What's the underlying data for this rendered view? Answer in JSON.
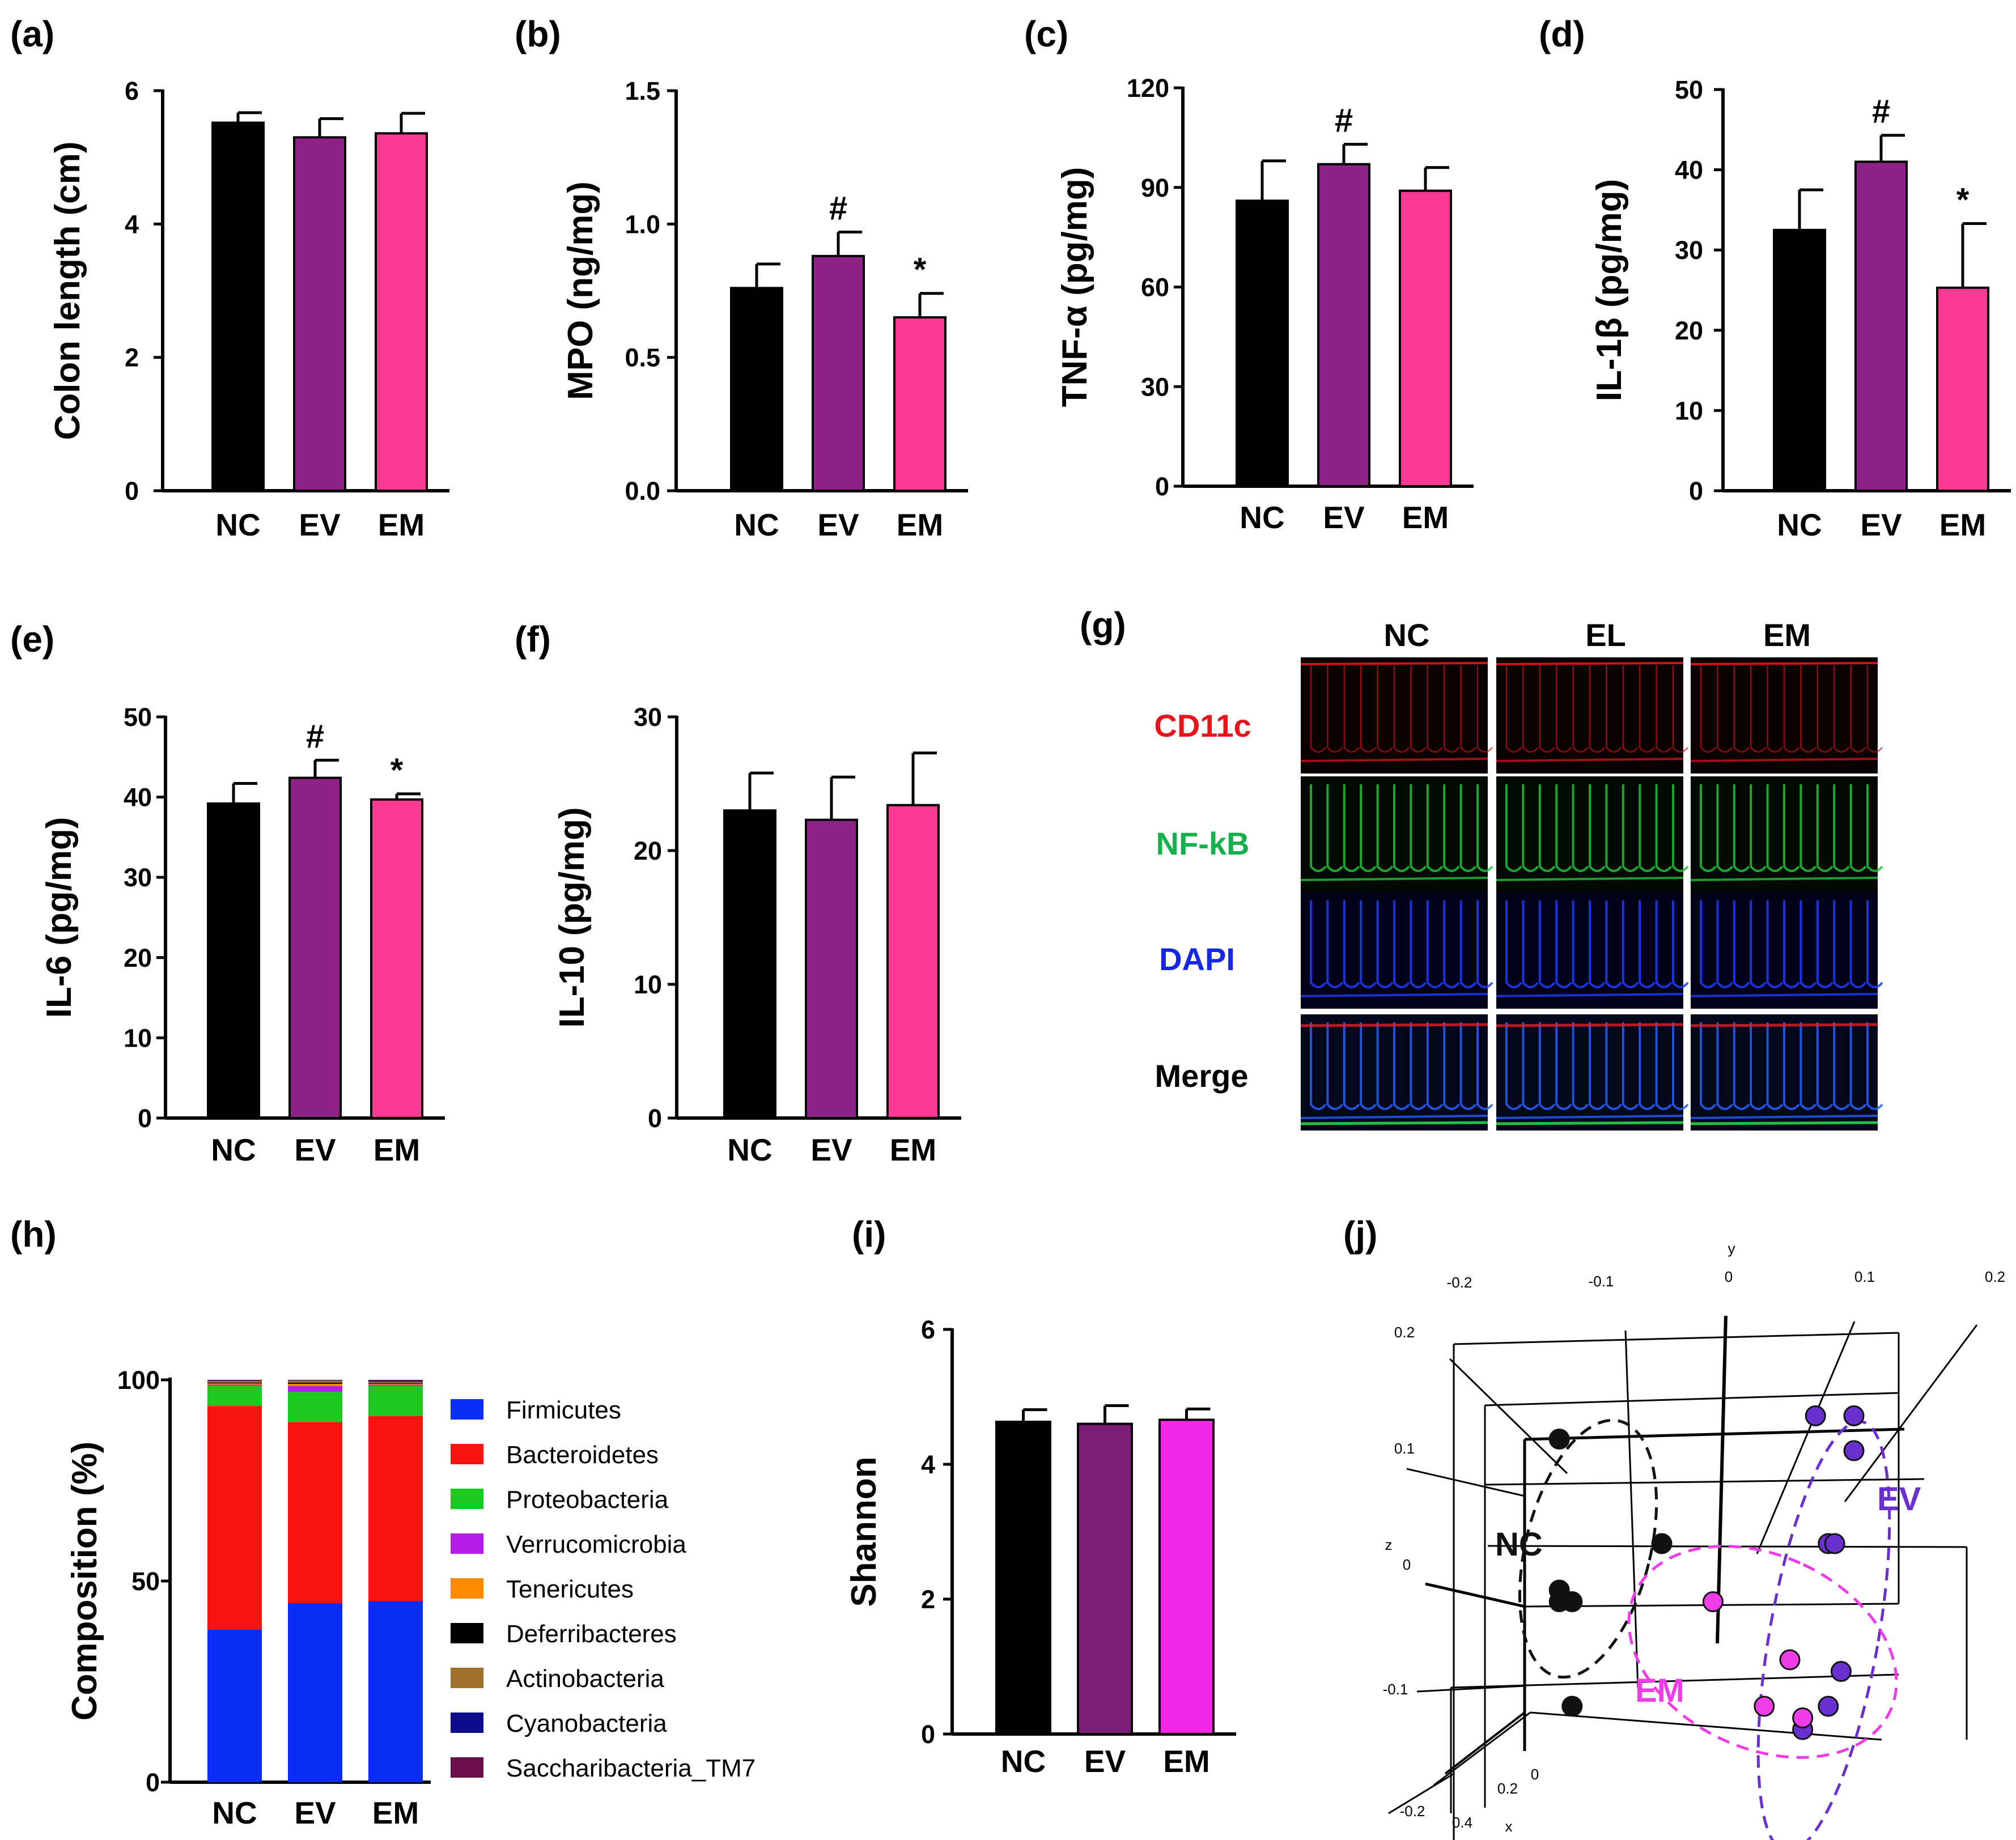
{
  "colors": {
    "NC": "#000000",
    "EV": "#8e2287",
    "EM": "#fc3993",
    "EV_i": "#7b1e74",
    "EM_i": "#f22ae8",
    "pcoa_NC": "#111111",
    "pcoa_EV": "#6a2fcf",
    "pcoa_EM": "#ee3ce6"
  },
  "chart_data": [
    {
      "id": "a",
      "panel": "(a)",
      "type": "bar",
      "ylabel": "Colon length (cm)",
      "ylim": [
        0,
        6
      ],
      "yticks": [
        0,
        2,
        4,
        6
      ],
      "ytick_labels": [
        "0",
        "2",
        "4",
        "6"
      ],
      "categories": [
        "NC",
        "EV",
        "EM"
      ],
      "values": [
        5.52,
        5.3,
        5.36
      ],
      "errors": [
        0.15,
        0.28,
        0.3
      ],
      "marks": [
        "",
        "",
        ""
      ]
    },
    {
      "id": "b",
      "panel": "(b)",
      "type": "bar",
      "ylabel": "MPO (ng/mg)",
      "ylim": [
        0,
        1.5
      ],
      "yticks": [
        0,
        0.5,
        1.0,
        1.5
      ],
      "ytick_labels": [
        "0.0",
        "0.5",
        "1.0",
        "1.5"
      ],
      "categories": [
        "NC",
        "EV",
        "EM"
      ],
      "values": [
        0.76,
        0.88,
        0.65
      ],
      "errors": [
        0.09,
        0.09,
        0.09
      ],
      "marks": [
        "",
        "#",
        "*"
      ]
    },
    {
      "id": "c",
      "panel": "(c)",
      "type": "bar",
      "ylabel": "TNF-α (pg/mg)",
      "ylim": [
        0,
        120
      ],
      "yticks": [
        0,
        30,
        60,
        90,
        120
      ],
      "ytick_labels": [
        "0",
        "30",
        "60",
        "90",
        "120"
      ],
      "categories": [
        "NC",
        "EV",
        "EM"
      ],
      "values": [
        86,
        97,
        89
      ],
      "errors": [
        12,
        6,
        7
      ],
      "marks": [
        "",
        "#",
        ""
      ]
    },
    {
      "id": "d",
      "panel": "(d)",
      "type": "bar",
      "ylabel": "IL-1β (pg/mg)",
      "ylim": [
        0,
        50
      ],
      "yticks": [
        0,
        10,
        20,
        30,
        40,
        50
      ],
      "ytick_labels": [
        "0",
        "10",
        "20",
        "30",
        "40",
        "50"
      ],
      "categories": [
        "NC",
        "EV",
        "EM"
      ],
      "values": [
        32.5,
        41,
        25.3
      ],
      "errors": [
        5,
        3.3,
        8
      ],
      "marks": [
        "",
        "#",
        "*"
      ]
    },
    {
      "id": "e",
      "panel": "(e)",
      "type": "bar",
      "ylabel": "IL-6 (pg/mg)",
      "ylim": [
        0,
        50
      ],
      "yticks": [
        0,
        10,
        20,
        30,
        40,
        50
      ],
      "ytick_labels": [
        "0",
        "10",
        "20",
        "30",
        "40",
        "50"
      ],
      "categories": [
        "NC",
        "EV",
        "EM"
      ],
      "values": [
        39.2,
        42.4,
        39.7
      ],
      "errors": [
        2.5,
        2.2,
        0.7
      ],
      "marks": [
        "",
        "#",
        "*"
      ]
    },
    {
      "id": "f",
      "panel": "(f)",
      "type": "bar",
      "ylabel": "IL-10 (pg/mg)",
      "ylim": [
        0,
        30
      ],
      "yticks": [
        0,
        10,
        20,
        30
      ],
      "ytick_labels": [
        "0",
        "10",
        "20",
        "30"
      ],
      "categories": [
        "NC",
        "EV",
        "EM"
      ],
      "values": [
        23,
        22.3,
        23.4
      ],
      "errors": [
        2.8,
        3.2,
        3.9
      ],
      "marks": [
        "",
        "",
        ""
      ]
    },
    {
      "id": "h",
      "panel": "(h)",
      "type": "stacked-bar",
      "ylabel": "Composition (%)",
      "ylim": [
        0,
        100
      ],
      "yticks": [
        0,
        50,
        100
      ],
      "ytick_labels": [
        "0",
        "50",
        "100"
      ],
      "categories": [
        "NC",
        "EV",
        "EM"
      ],
      "series": [
        {
          "name": "Firmicutes",
          "color": "#0a2cf5",
          "values": [
            38,
            44.5,
            45
          ]
        },
        {
          "name": "Bacteroidetes",
          "color": "#f5140f",
          "values": [
            55.5,
            45,
            46
          ]
        },
        {
          "name": "Proteobacteria",
          "color": "#1dc821",
          "values": [
            5,
            7.5,
            7.5
          ]
        },
        {
          "name": "Verrucomicrobia",
          "color": "#b41ee8",
          "values": [
            0.3,
            1.5,
            0.3
          ]
        },
        {
          "name": "Tenericutes",
          "color": "#ff8c00",
          "values": [
            0.3,
            0.5,
            0.2
          ]
        },
        {
          "name": "Deferribacteres",
          "color": "#000000",
          "values": [
            0.2,
            0.3,
            0.2
          ]
        },
        {
          "name": "Actinobacteria",
          "color": "#a0702c",
          "values": [
            0.5,
            0.6,
            0.3
          ]
        },
        {
          "name": "Cyanobacteria",
          "color": "#0c0c8c",
          "values": [
            0.1,
            0.1,
            0.2
          ]
        },
        {
          "name": "Saccharibacteria_TM7",
          "color": "#6a0f4a",
          "values": [
            0.1,
            0.0,
            0.3
          ]
        }
      ]
    },
    {
      "id": "i",
      "panel": "(i)",
      "type": "bar",
      "ylabel": "Shannon",
      "ylim": [
        0,
        6
      ],
      "yticks": [
        0,
        2,
        4,
        6
      ],
      "ytick_labels": [
        "0",
        "2",
        "4",
        "6"
      ],
      "categories": [
        "NC",
        "EV",
        "EM"
      ],
      "values": [
        4.63,
        4.6,
        4.66
      ],
      "errors": [
        0.18,
        0.27,
        0.16
      ],
      "marks": [
        "",
        "",
        ""
      ]
    },
    {
      "id": "j",
      "panel": "(j)",
      "type": "scatter3d",
      "axes": {
        "x": "x",
        "y": "y",
        "z": "z"
      },
      "y_ticks": [
        "-0.2",
        "-0.1",
        "0",
        "0.1",
        "0.2"
      ],
      "z_ticks": [
        "0.2",
        "0.1",
        "0",
        "-0.1"
      ],
      "x_ticks": [
        "-0.2",
        "0.4",
        "0.2",
        "0"
      ],
      "groups": [
        {
          "name": "NC",
          "points": [
            [
              -0.13,
              0.11
            ],
            [
              -0.05,
              0.02
            ],
            [
              -0.13,
              -0.02
            ],
            [
              -0.13,
              -0.03
            ],
            [
              -0.12,
              -0.03
            ],
            [
              -0.12,
              -0.12
            ]
          ]
        },
        {
          "name": "EV",
          "points": [
            [
              0.07,
              0.13
            ],
            [
              0.1,
              0.13
            ],
            [
              0.1,
              0.1
            ],
            [
              0.08,
              0.02
            ],
            [
              0.085,
              0.02
            ],
            [
              0.09,
              -0.09
            ],
            [
              0.08,
              -0.12
            ],
            [
              0.06,
              -0.14
            ]
          ]
        },
        {
          "name": "EM",
          "points": [
            [
              -0.01,
              -0.03
            ],
            [
              0.05,
              -0.08
            ],
            [
              0.03,
              -0.12
            ],
            [
              0.06,
              -0.13
            ]
          ]
        }
      ]
    }
  ],
  "panel_g": {
    "label": "(g)",
    "columns": [
      "NC",
      "EL",
      "EM"
    ],
    "rows": [
      {
        "label": "CD11c",
        "color": "#e8141b"
      },
      {
        "label": "NF-kB",
        "color": "#13b04b"
      },
      {
        "label": "DAPI",
        "color": "#1428e0"
      },
      {
        "label": "Merge",
        "color": "#000000"
      }
    ]
  }
}
